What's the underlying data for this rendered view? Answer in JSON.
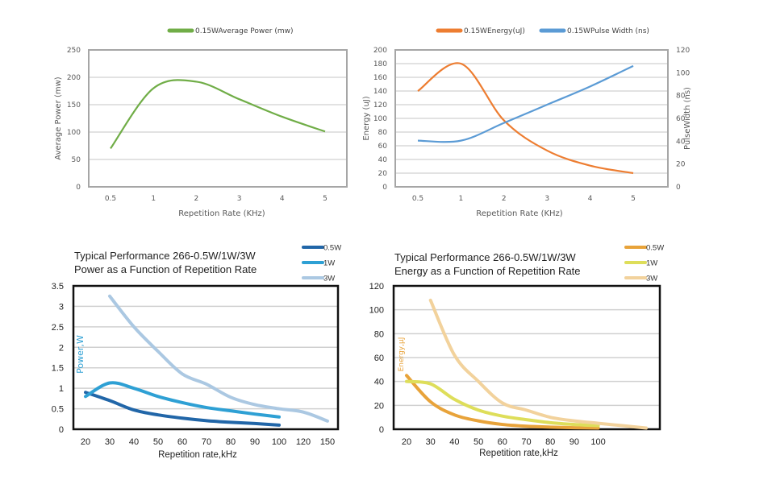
{
  "chart_data": [
    {
      "type": "line",
      "title": "",
      "xlabel": "Repetition Rate (KHz)",
      "ylabel": "Average Power (mw)",
      "categories": [
        "0.5",
        "1",
        "2",
        "3",
        "4",
        "5"
      ],
      "ylim": [
        0,
        250
      ],
      "yticks": [
        "0",
        "50",
        "100",
        "150",
        "200",
        "250"
      ],
      "grid": true,
      "legend": "top-center",
      "series": [
        {
          "name": "0.15WAverage Power (mw)",
          "color": "#70ad47",
          "values": [
            70,
            180,
            192,
            160,
            128,
            101
          ]
        }
      ]
    },
    {
      "type": "line",
      "title": "",
      "xlabel": "Repetition Rate (KHz)",
      "ylabel": "Energy (uJ)",
      "y2label": "PulseWidth (ns)",
      "categories": [
        "0.5",
        "1",
        "2",
        "3",
        "4",
        "5"
      ],
      "ylim": [
        0,
        200
      ],
      "y2lim": [
        0,
        120
      ],
      "yticks": [
        "0",
        "20",
        "40",
        "60",
        "80",
        "100",
        "120",
        "140",
        "160",
        "180",
        "200"
      ],
      "y2ticks": [
        "0",
        "20",
        "40",
        "60",
        "80",
        "100",
        "120"
      ],
      "grid": true,
      "legend": "top-center",
      "series": [
        {
          "name": "0.15WEnergy(uJ)",
          "color": "#ed7d31",
          "axis": "left",
          "values": [
            140,
            180,
            97,
            53,
            31,
            20
          ]
        },
        {
          "name": "0.15WPulse Width (ns)",
          "color": "#5b9bd5",
          "axis": "right",
          "values": [
            40.5,
            40.5,
            56,
            72,
            88,
            106
          ]
        }
      ]
    },
    {
      "type": "line",
      "title": "Typical Performance 266-0.5W/1W/3W",
      "subtitle": "Power as a Function of Repetition Rate",
      "xlabel": "Repetition rate,kHz",
      "ylabel": "Power,W",
      "categories": [
        "20",
        "30",
        "40",
        "50",
        "60",
        "70",
        "80",
        "90",
        "100",
        "120",
        "150"
      ],
      "ylim": [
        0,
        3.5
      ],
      "yticks": [
        "0",
        "0.5",
        "1",
        "1.5",
        "2",
        "2.5",
        "3",
        "3.5"
      ],
      "grid": true,
      "legend": "top-right",
      "series": [
        {
          "name": "0.5W",
          "color": "#2166a8",
          "values": [
            0.9,
            0.7,
            0.47,
            0.35,
            0.27,
            0.21,
            0.17,
            0.14,
            0.1,
            null,
            null
          ]
        },
        {
          "name": "1W",
          "color": "#2ea0d4",
          "values": [
            0.8,
            1.13,
            1.0,
            0.8,
            0.65,
            0.53,
            0.45,
            0.37,
            0.3,
            null,
            null
          ]
        },
        {
          "name": "3W",
          "color": "#abc8e2",
          "values": [
            null,
            3.25,
            2.5,
            1.9,
            1.35,
            1.1,
            0.78,
            0.6,
            0.5,
            0.42,
            0.2
          ]
        }
      ]
    },
    {
      "type": "line",
      "title": "Typical Performance 266-0.5W/1W/3W",
      "subtitle": "Energy as a Function of Repetition Rate",
      "xlabel": "Repetition rate,kHz",
      "ylabel": "Energy,µJ",
      "categories": [
        "20",
        "30",
        "40",
        "50",
        "60",
        "70",
        "80",
        "90",
        "100",
        "",
        ""
      ],
      "ylim": [
        0,
        120
      ],
      "yticks": [
        "0",
        "20",
        "40",
        "60",
        "80",
        "100",
        "120"
      ],
      "grid": true,
      "legend": "top-right",
      "series": [
        {
          "name": "0.5W",
          "color": "#e8a33a",
          "values": [
            45,
            23,
            12,
            7,
            4,
            2.5,
            1.8,
            1.3,
            1,
            null,
            null
          ]
        },
        {
          "name": "1W",
          "color": "#dede5a",
          "values": [
            40,
            38,
            25,
            16,
            11,
            8,
            5.5,
            4,
            3,
            null,
            null
          ]
        },
        {
          "name": "3W",
          "color": "#f2d29c",
          "values": [
            null,
            108,
            62,
            40,
            22,
            16,
            10,
            7,
            5,
            3,
            1
          ]
        }
      ]
    }
  ]
}
